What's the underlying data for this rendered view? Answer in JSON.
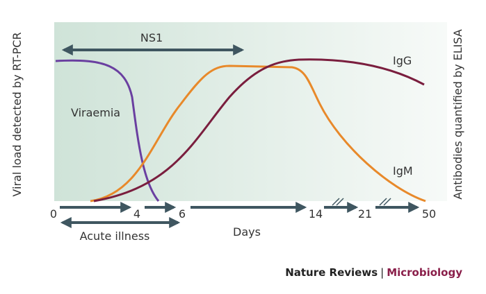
{
  "axes": {
    "y_left": "Viral load detected by RT-PCR",
    "y_right": "Antibodies quantified by ELISA",
    "x": "Days",
    "ticks": [
      "0",
      "4",
      "6",
      "14",
      "21",
      "50"
    ]
  },
  "labels": {
    "ns1": "NS1",
    "viraemia": "Viraemia",
    "igg": "IgG",
    "igm": "IgM",
    "acute": "Acute illness"
  },
  "credit": {
    "journal": "Nature Reviews",
    "separator": "|",
    "section": "Microbiology"
  }
}
